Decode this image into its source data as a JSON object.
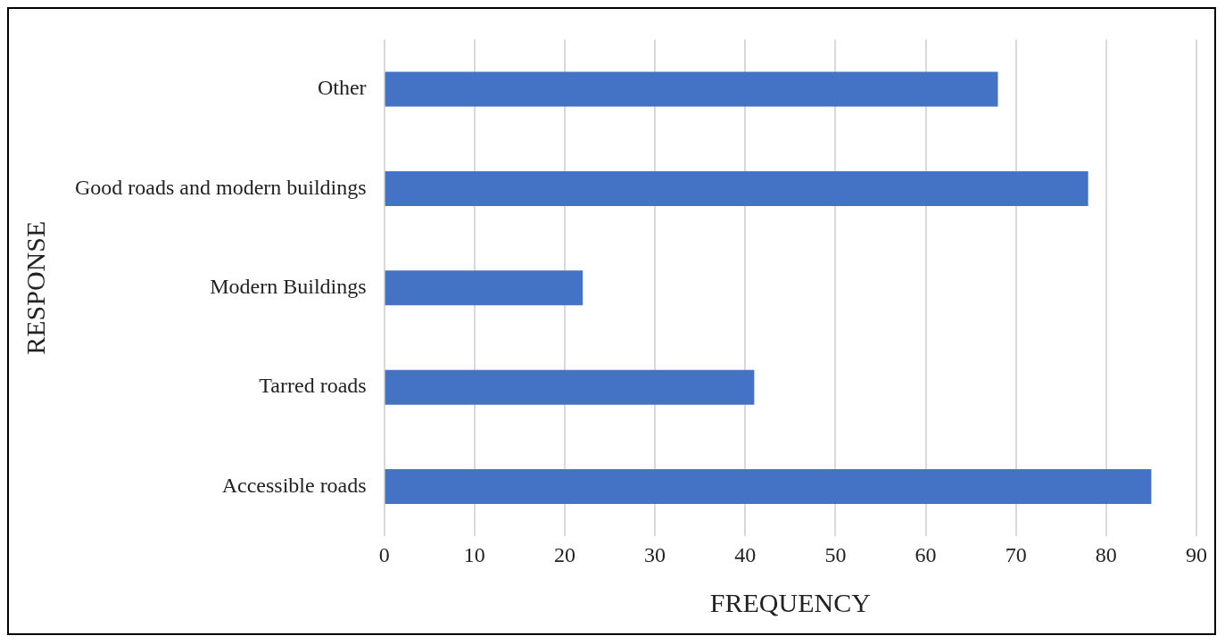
{
  "chart_data": {
    "type": "bar",
    "orientation": "horizontal",
    "categories": [
      "Other",
      "Good roads and modern buildings",
      "Modern Buildings",
      "Tarred roads",
      "Accessible roads"
    ],
    "values": [
      68,
      78,
      22,
      41,
      85
    ],
    "color": "#4472c4",
    "xlim": [
      0,
      90
    ],
    "xticks": [
      0,
      10,
      20,
      30,
      40,
      50,
      60,
      70,
      80,
      90
    ],
    "xlabel": "FREQUENCY",
    "ylabel": "RESPONSE",
    "grid": "x",
    "legend": false
  }
}
